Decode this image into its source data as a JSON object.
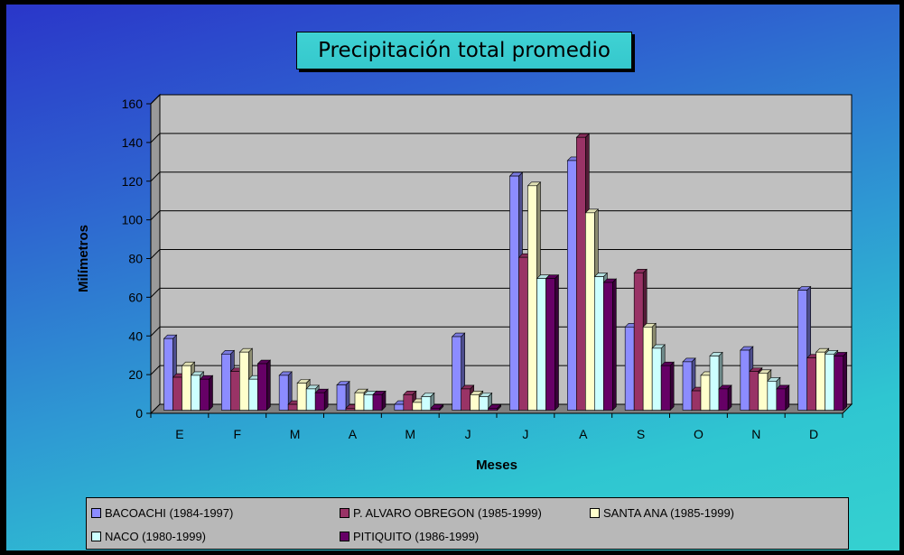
{
  "chart_data": {
    "type": "bar",
    "title": "Precipitación total promedio",
    "xlabel": "Meses",
    "ylabel": "Milímetros",
    "ylim": [
      0,
      160
    ],
    "yticks": [
      "0",
      "20",
      "40",
      "60",
      "80",
      "100",
      "120",
      "140",
      "160"
    ],
    "categories": [
      "E",
      "F",
      "M",
      "A",
      "M",
      "J",
      "J",
      "A",
      "S",
      "O",
      "N",
      "D"
    ],
    "grid": true,
    "legend_position": "bottom",
    "series": [
      {
        "name": "BACOACHI (1984-1997)",
        "color": "#8c8cff",
        "values": [
          37,
          29,
          18,
          13,
          3,
          38,
          121,
          129,
          43,
          25,
          31,
          62
        ]
      },
      {
        "name": "P. ALVARO OBREGON (1985-1999)",
        "color": "#993366",
        "values": [
          17,
          20,
          3,
          1,
          8,
          11,
          79,
          141,
          71,
          10,
          20,
          27
        ]
      },
      {
        "name": "SANTA  ANA (1985-1999)",
        "color": "#ffffcc",
        "values": [
          23,
          30,
          14,
          9,
          4,
          8,
          116,
          102,
          43,
          18,
          19,
          30
        ]
      },
      {
        "name": "NACO (1980-1999)",
        "color": "#ccffff",
        "values": [
          18,
          16,
          11,
          8,
          7,
          7,
          68,
          69,
          32,
          28,
          15,
          29
        ]
      },
      {
        "name": "PITIQUITO (1986-1999)",
        "color": "#660066",
        "values": [
          16,
          24,
          9,
          8,
          1,
          1,
          68,
          66,
          23,
          11,
          11,
          28
        ]
      }
    ]
  }
}
